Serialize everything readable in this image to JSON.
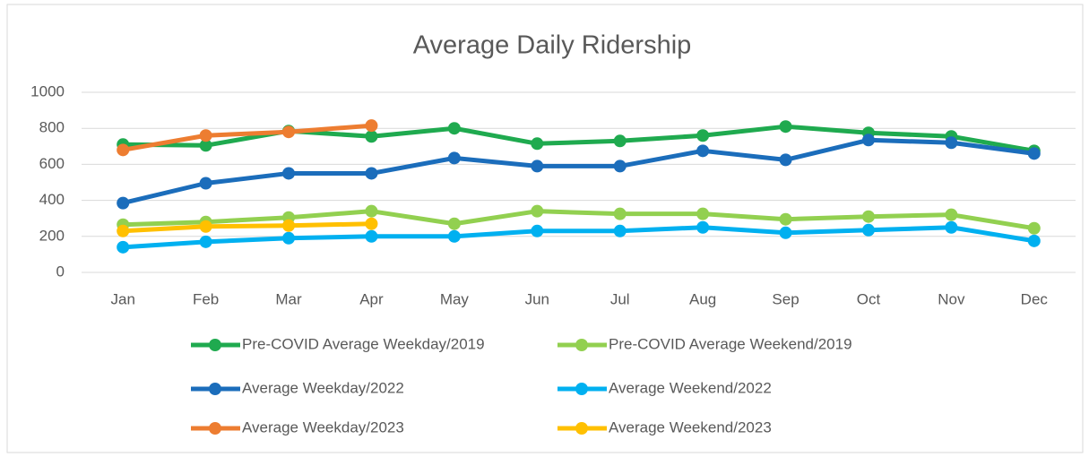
{
  "chart_data": {
    "type": "line",
    "title": "Average Daily Ridership",
    "categories": [
      "Jan",
      "Feb",
      "Mar",
      "Apr",
      "May",
      "Jun",
      "Jul",
      "Aug",
      "Sep",
      "Oct",
      "Nov",
      "Dec"
    ],
    "series": [
      {
        "name": "Pre-COVID Average Weekday/2019",
        "color": "#1faa4f",
        "values": [
          710,
          705,
          785,
          755,
          800,
          715,
          730,
          760,
          810,
          775,
          755,
          675
        ]
      },
      {
        "name": "Pre-COVID Average Weekend/2019",
        "color": "#92d050",
        "values": [
          265,
          280,
          305,
          340,
          270,
          340,
          325,
          325,
          295,
          310,
          320,
          245
        ]
      },
      {
        "name": "Average Weekday/2022",
        "color": "#1b6dbb",
        "values": [
          385,
          495,
          550,
          550,
          635,
          590,
          590,
          675,
          625,
          735,
          720,
          660
        ]
      },
      {
        "name": "Average Weekend/2022",
        "color": "#00b0f0",
        "values": [
          140,
          170,
          190,
          200,
          200,
          230,
          230,
          250,
          220,
          235,
          250,
          175
        ]
      },
      {
        "name": "Average Weekday/2023",
        "color": "#ed7d31",
        "values": [
          680,
          760,
          780,
          815,
          null,
          null,
          null,
          null,
          null,
          null,
          null,
          null
        ]
      },
      {
        "name": "Average Weekend/2023",
        "color": "#ffc000",
        "values": [
          230,
          255,
          260,
          270,
          null,
          null,
          null,
          null,
          null,
          null,
          null,
          null
        ]
      }
    ],
    "ylim": [
      0,
      1000
    ],
    "yticks": [
      0,
      200,
      400,
      600,
      800,
      1000
    ],
    "grid": true,
    "legend": "bottom"
  }
}
